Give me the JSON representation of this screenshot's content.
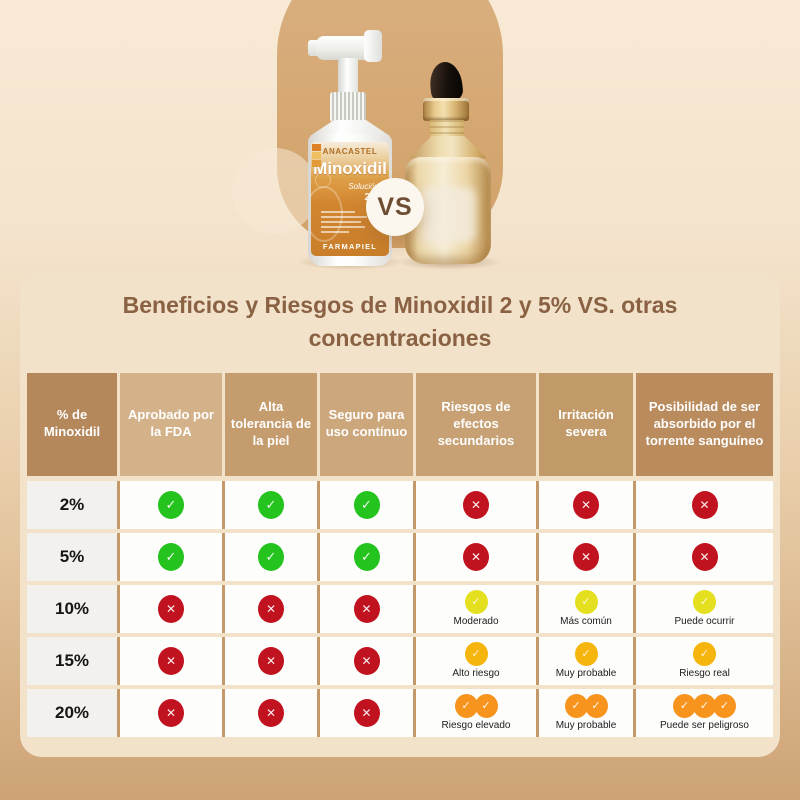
{
  "chart_data": {
    "type": "table",
    "title": "Beneficios y Riesgos de Minoxidil 2 y 5% VS. otras concentraciones",
    "columns": [
      "% de Minoxidil",
      "Aprobado por la FDA",
      "Alta tolerancia de la piel",
      "Seguro para uso contínuo",
      "Riesgos de efectos secundarios",
      "Irritación severa",
      "Posibilidad de ser absorbido por el torrente sanguíneo"
    ],
    "rows": [
      {
        "concentration": "2%",
        "cells": [
          {
            "icon": "check",
            "tone": "green"
          },
          {
            "icon": "check",
            "tone": "green"
          },
          {
            "icon": "check",
            "tone": "green"
          },
          {
            "icon": "cross",
            "tone": "red"
          },
          {
            "icon": "cross",
            "tone": "red"
          },
          {
            "icon": "cross",
            "tone": "red"
          }
        ]
      },
      {
        "concentration": "5%",
        "cells": [
          {
            "icon": "check",
            "tone": "green"
          },
          {
            "icon": "check",
            "tone": "green"
          },
          {
            "icon": "check",
            "tone": "green"
          },
          {
            "icon": "cross",
            "tone": "red"
          },
          {
            "icon": "cross",
            "tone": "red"
          },
          {
            "icon": "cross",
            "tone": "red"
          }
        ]
      },
      {
        "concentration": "10%",
        "cells": [
          {
            "icon": "cross",
            "tone": "red"
          },
          {
            "icon": "cross",
            "tone": "red"
          },
          {
            "icon": "cross",
            "tone": "red"
          },
          {
            "icon": "check",
            "tone": "yellow",
            "note": "Moderado"
          },
          {
            "icon": "check",
            "tone": "yellow",
            "note": "Más común"
          },
          {
            "icon": "check",
            "tone": "yellow",
            "note": "Puede ocurrir"
          }
        ]
      },
      {
        "concentration": "15%",
        "cells": [
          {
            "icon": "cross",
            "tone": "red"
          },
          {
            "icon": "cross",
            "tone": "red"
          },
          {
            "icon": "cross",
            "tone": "red"
          },
          {
            "icon": "check",
            "tone": "amber",
            "note": "Alto riesgo"
          },
          {
            "icon": "check",
            "tone": "amber",
            "note": "Muy probable"
          },
          {
            "icon": "check",
            "tone": "amber",
            "note": "Riesgo real"
          }
        ]
      },
      {
        "concentration": "20%",
        "cells": [
          {
            "icon": "cross",
            "tone": "red"
          },
          {
            "icon": "cross",
            "tone": "red"
          },
          {
            "icon": "cross",
            "tone": "red"
          },
          {
            "icon": "check",
            "tone": "orange",
            "count": 2,
            "note": "Riesgo elevado"
          },
          {
            "icon": "check",
            "tone": "orange",
            "count": 2,
            "note": "Muy probable"
          },
          {
            "icon": "check",
            "tone": "orange",
            "count": 3,
            "note": "Puede ser peligroso"
          }
        ]
      }
    ]
  },
  "hero": {
    "vs_badge": "VS",
    "spray_product": {
      "brand": "ANACASTEL",
      "product_name": "Minoxidil",
      "form_label": "Solución",
      "strength": "2%",
      "maker": "FARMAPIEL"
    }
  },
  "colors": {
    "green": "#25c31d",
    "red": "#c0121f",
    "yellow": "#e4e01f",
    "amber": "#f6b50d",
    "orange": "#f7941d",
    "title_text": "#8a6243",
    "panel_bg": "#f2e2ca",
    "separator": "#c49a6a"
  }
}
